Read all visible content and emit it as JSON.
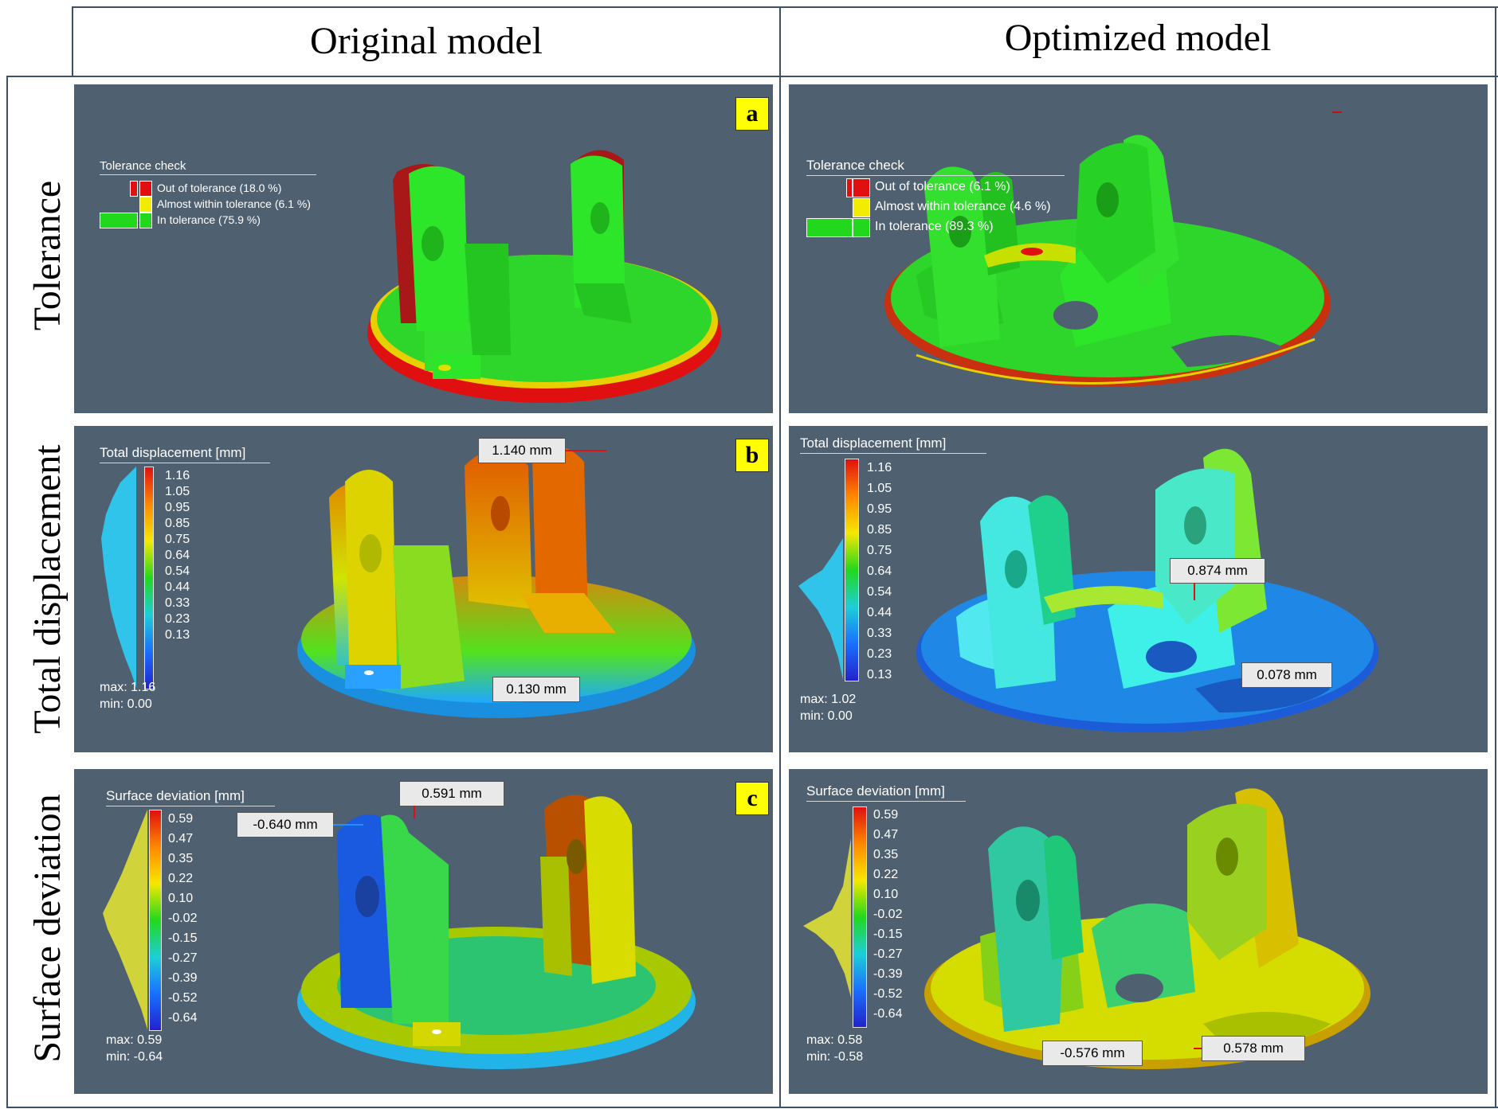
{
  "headers": {
    "col1": "Original model",
    "col2": "Optimized model"
  },
  "rows": {
    "r1": "Tolerance",
    "r2": "Total displacement",
    "r3": "Surface deviation"
  },
  "panel_letters": {
    "a": "a",
    "b": "b",
    "c": "c"
  },
  "tolerance": {
    "title": "Tolerance check",
    "original": {
      "out": "Out of tolerance (18.0 %)",
      "almost": "Almost within tolerance (6.1 %)",
      "in": "In tolerance (75.9 %)"
    },
    "optimized": {
      "out": "Out of tolerance (6.1 %)",
      "almost": "Almost within tolerance (4.6 %)",
      "in": "In tolerance (89.3 %)"
    }
  },
  "displacement": {
    "title": "Total displacement [mm]",
    "ticks": [
      "1.16",
      "1.05",
      "0.95",
      "0.85",
      "0.75",
      "0.64",
      "0.54",
      "0.44",
      "0.33",
      "0.23",
      "0.13"
    ],
    "original": {
      "max": "max: 1.16",
      "min": "min: 0.00",
      "callout_top": "1.140 mm",
      "callout_bottom": "0.130 mm"
    },
    "optimized": {
      "max": "max: 1.02",
      "min": "min: 0.00",
      "callout_top": "0.874 mm",
      "callout_bottom": "0.078 mm"
    }
  },
  "deviation": {
    "title": "Surface deviation [mm]",
    "ticks": [
      "0.59",
      "0.47",
      "0.35",
      "0.22",
      "0.10",
      "-0.02",
      "-0.15",
      "-0.27",
      "-0.39",
      "-0.52",
      "-0.64"
    ],
    "original": {
      "max": "max:  0.59",
      "min": "min: -0.64",
      "callout_top": "0.591 mm",
      "callout_left": "-0.640 mm"
    },
    "optimized": {
      "max": "max:  0.58",
      "min": "min: -0.58",
      "callout_left": "-0.576 mm",
      "callout_right": "0.578 mm"
    }
  },
  "colors": {
    "panel_bg": "#4f6071",
    "red": "#e01010",
    "yellow": "#f2ec00",
    "green": "#22d81c",
    "letter_bg": "#ffff00"
  }
}
